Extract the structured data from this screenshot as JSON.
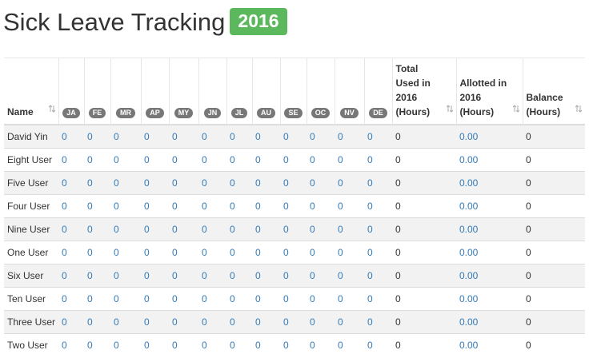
{
  "header": {
    "title": "Sick Leave Tracking",
    "badge": "2016"
  },
  "table": {
    "columns": [
      "Name",
      "JA",
      "FE",
      "MR",
      "AP",
      "MY",
      "JN",
      "JL",
      "AU",
      "SE",
      "OC",
      "NV",
      "DE",
      "Total Used in 2016 (Hours)",
      "Allotted in 2016 (Hours)",
      "Balance (Hours)"
    ],
    "rows": [
      [
        "David Yin",
        "0",
        "0",
        "0",
        "0",
        "0",
        "0",
        "0",
        "0",
        "0",
        "0",
        "0",
        "0",
        "0",
        "0.00",
        "0"
      ],
      [
        "Eight User",
        "0",
        "0",
        "0",
        "0",
        "0",
        "0",
        "0",
        "0",
        "0",
        "0",
        "0",
        "0",
        "0",
        "0.00",
        "0"
      ],
      [
        "Five User",
        "0",
        "0",
        "0",
        "0",
        "0",
        "0",
        "0",
        "0",
        "0",
        "0",
        "0",
        "0",
        "0",
        "0.00",
        "0"
      ],
      [
        "Four User",
        "0",
        "0",
        "0",
        "0",
        "0",
        "0",
        "0",
        "0",
        "0",
        "0",
        "0",
        "0",
        "0",
        "0.00",
        "0"
      ],
      [
        "Nine User",
        "0",
        "0",
        "0",
        "0",
        "0",
        "0",
        "0",
        "0",
        "0",
        "0",
        "0",
        "0",
        "0",
        "0.00",
        "0"
      ],
      [
        "One User",
        "0",
        "0",
        "0",
        "0",
        "0",
        "0",
        "0",
        "0",
        "0",
        "0",
        "0",
        "0",
        "0",
        "0.00",
        "0"
      ],
      [
        "Six User",
        "0",
        "0",
        "0",
        "0",
        "0",
        "0",
        "0",
        "0",
        "0",
        "0",
        "0",
        "0",
        "0",
        "0.00",
        "0"
      ],
      [
        "Ten User",
        "0",
        "0",
        "0",
        "0",
        "0",
        "0",
        "0",
        "0",
        "0",
        "0",
        "0",
        "0",
        "0",
        "0.00",
        "0"
      ],
      [
        "Three User",
        "0",
        "0",
        "0",
        "0",
        "0",
        "0",
        "0",
        "0",
        "0",
        "0",
        "0",
        "0",
        "0",
        "0.00",
        "0"
      ],
      [
        "Two User",
        "0",
        "0",
        "0",
        "0",
        "0",
        "0",
        "0",
        "0",
        "0",
        "0",
        "0",
        "0",
        "0",
        "0.00",
        "0"
      ]
    ]
  }
}
